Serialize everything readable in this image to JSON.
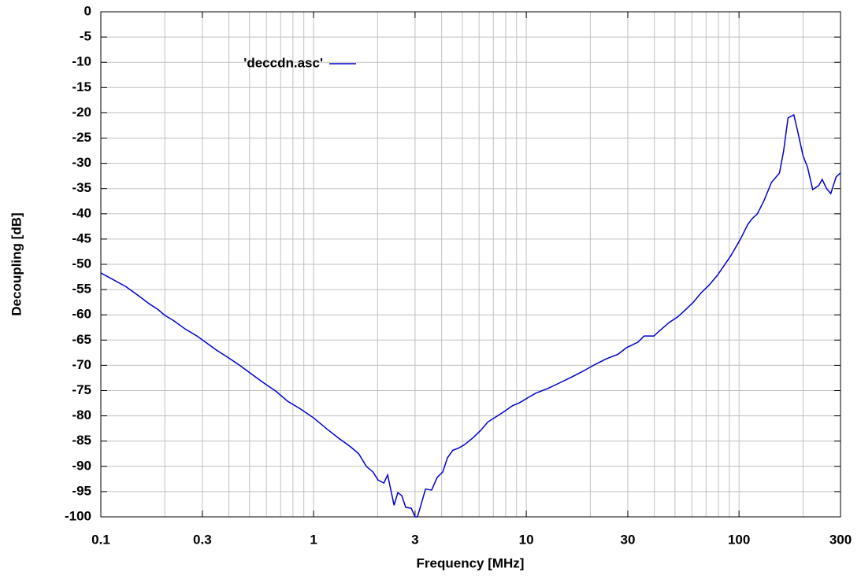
{
  "chart_data": {
    "type": "line",
    "x_label": "Frequency [MHz]",
    "y_label": "Decoupling [dB]",
    "x_log": true,
    "grid": true,
    "legend": "upper left",
    "xlim": [
      0.1,
      300
    ],
    "xticks": [
      0.1,
      0.3,
      1,
      3,
      10,
      30,
      100,
      300
    ],
    "ylim": [
      -100,
      0
    ],
    "yticks": [
      0,
      -5,
      -10,
      -15,
      -20,
      -25,
      -30,
      -35,
      -40,
      -45,
      -50,
      -55,
      -60,
      -65,
      -70,
      -75,
      -80,
      -85,
      -90,
      -95,
      -100
    ],
    "x": [
      0.1,
      0.131,
      0.149,
      0.17,
      0.185,
      0.2,
      0.219,
      0.249,
      0.283,
      0.308,
      0.35,
      0.398,
      0.453,
      0.514,
      0.584,
      0.664,
      0.755,
      0.858,
      1,
      1.156,
      1.31,
      1.49,
      1.63,
      1.77,
      1.9,
      2.01,
      2.14,
      2.23,
      2.39,
      2.49,
      2.6,
      2.71,
      2.88,
      3.0,
      3.08,
      3.36,
      3.59,
      3.81,
      4.05,
      4.26,
      4.52,
      4.8,
      5.13,
      5.6,
      6.1,
      6.6,
      7.2,
      7.9,
      8.6,
      9.3,
      10,
      11.1,
      12.6,
      14.3,
      16.2,
      18.4,
      20.9,
      23.8,
      27,
      29.6,
      33.5,
      35.8,
      39.8,
      42.5,
      47,
      51.5,
      56,
      61,
      66.5,
      72,
      79,
      84,
      91.5,
      101,
      110,
      115,
      122,
      131,
      142,
      155,
      162,
      170,
      181,
      189,
      200,
      210,
      222,
      237,
      246,
      258,
      270,
      286,
      300
    ],
    "series": [
      {
        "name": "'deccdn.asc'",
        "color": "#0000cc",
        "values": [
          -51.7,
          -54.4,
          -56.1,
          -57.9,
          -58.9,
          -60.1,
          -61.1,
          -62.8,
          -64.2,
          -65.3,
          -67,
          -68.5,
          -70.1,
          -71.8,
          -73.5,
          -75.1,
          -77.1,
          -78.5,
          -80.4,
          -82.6,
          -84.4,
          -86.1,
          -87.5,
          -90,
          -91.1,
          -92.7,
          -93.3,
          -91.7,
          -97.7,
          -95.2,
          -95.8,
          -98.1,
          -98.3,
          -100,
          -100,
          -94.5,
          -94.7,
          -92.2,
          -91.1,
          -88.3,
          -86.8,
          -86.4,
          -85.7,
          -84.4,
          -82.9,
          -81.2,
          -80.2,
          -79.1,
          -78,
          -77.4,
          -76.6,
          -75.5,
          -74.6,
          -73.5,
          -72.4,
          -71.2,
          -69.9,
          -68.7,
          -67.8,
          -66.5,
          -65.4,
          -64.2,
          -64.2,
          -63.1,
          -61.5,
          -60.4,
          -59,
          -57.5,
          -55.6,
          -54.2,
          -52.2,
          -50.6,
          -48.3,
          -45.2,
          -42.1,
          -41,
          -40,
          -37.4,
          -33.8,
          -31.9,
          -27.6,
          -21,
          -20.4,
          -23.8,
          -28.5,
          -30.8,
          -35.2,
          -34.4,
          -33.2,
          -35,
          -36,
          -32.7,
          -31.9
        ]
      }
    ]
  }
}
